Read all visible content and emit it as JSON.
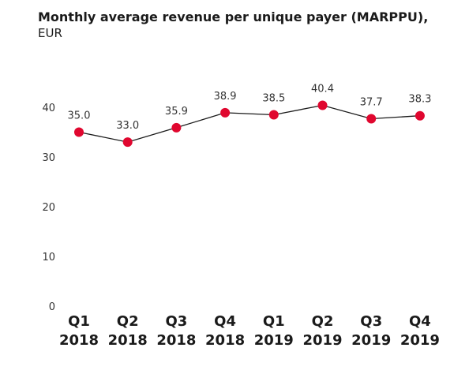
{
  "chart_data": {
    "type": "line",
    "title": "Monthly average revenue per unique payer (MARPPU),",
    "subtitle": "EUR",
    "categories": [
      [
        "Q1",
        "2018"
      ],
      [
        "Q2",
        "2018"
      ],
      [
        "Q3",
        "2018"
      ],
      [
        "Q4",
        "2018"
      ],
      [
        "Q1",
        "2019"
      ],
      [
        "Q2",
        "2019"
      ],
      [
        "Q3",
        "2019"
      ],
      [
        "Q4",
        "2019"
      ]
    ],
    "values": [
      35.0,
      33.0,
      35.9,
      38.9,
      38.5,
      40.4,
      37.7,
      38.3
    ],
    "value_labels": [
      "35.0",
      "33.0",
      "35.9",
      "38.9",
      "38.5",
      "40.4",
      "37.7",
      "38.3"
    ],
    "yticks": [
      0,
      10,
      20,
      30,
      40
    ],
    "ylim": [
      0,
      40
    ],
    "xlabel": "",
    "ylabel": "",
    "grid": false,
    "legend": "none",
    "colors": {
      "marker": "#e0072f",
      "line": "#1a1a1a"
    }
  }
}
